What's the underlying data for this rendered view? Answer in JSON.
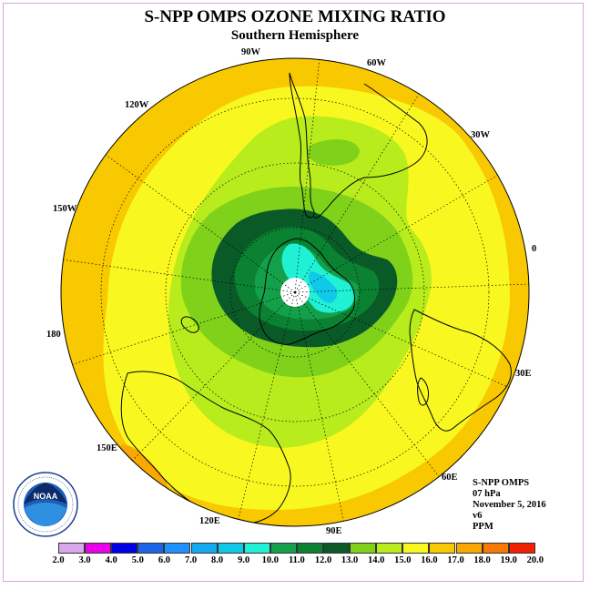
{
  "title": "S-NPP OMPS OZONE MIXING RATIO",
  "subtitle": "Southern Hemisphere",
  "longitude_labels": {
    "w90": "90W",
    "w60": "60W",
    "w30": "30W",
    "w120": "120W",
    "w150": "150W",
    "e0": "0",
    "e180": "180",
    "e30": "30E",
    "e150": "150E",
    "e60": "60E",
    "e120": "120E",
    "e90": "90E"
  },
  "info": {
    "instrument": "S-NPP OMPS",
    "level": "07 hPa",
    "date": "November 5, 2016",
    "version": "v6",
    "units": "PPM"
  },
  "colorbar": {
    "ticks": [
      "2.0",
      "3.0",
      "4.0",
      "5.0",
      "6.0",
      "7.0",
      "8.0",
      "9.0",
      "10.0",
      "11.0",
      "12.0",
      "13.0",
      "14.0",
      "15.0",
      "16.0",
      "17.0",
      "18.0",
      "19.0",
      "20.0"
    ],
    "colors": [
      "#b47ae6",
      "#d8a8ec",
      "#e800e8",
      "#0000e6",
      "#1e64e6",
      "#1e90ff",
      "#14aaf0",
      "#10c8e8",
      "#20f0d4",
      "#14a04a",
      "#0a8232",
      "#0a5a28",
      "#7fd11a",
      "#b8ec1c",
      "#f8f820",
      "#f8c800",
      "#f8a800",
      "#f87800",
      "#f02000",
      "#e80000",
      "#8a5a3c"
    ]
  },
  "logo": {
    "text": "NOAA",
    "ring_text": "NATIONAL OCEANIC AND ATMOSPHERIC ADMINISTRATION",
    "ring_text_bottom": "U.S. DEPARTMENT OF COMMERCE"
  },
  "map_colors": {
    "outer": "#f8c800",
    "mid": "#f8f820",
    "lightgreen": "#b8ec1c",
    "green": "#7fd11a",
    "darkgreen": "#0a5a28",
    "midgreen": "#0a8232",
    "green3": "#14a04a",
    "cyan": "#20f0d4",
    "blue": "#10c8e8",
    "orange": "#f8a800",
    "pole": "#ffffff"
  }
}
